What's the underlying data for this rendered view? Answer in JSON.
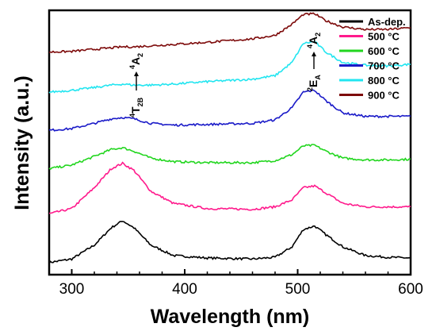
{
  "chart_data": {
    "type": "line",
    "xlabel": "Wavelength (nm)",
    "ylabel": "Intensity (a.u.)",
    "xlim": [
      280,
      600
    ],
    "xticks": [
      300,
      400,
      500,
      600
    ],
    "ylim": [
      0,
      7.6
    ],
    "yticks_labeled": false,
    "grid": false,
    "legend_position": "top-right",
    "annotations": [
      {
        "text": "4T2B → 4A2",
        "x": 352,
        "near": "left peak"
      },
      {
        "text": "2EA → 4A2",
        "x": 507,
        "near": "right peak"
      }
    ],
    "series": [
      {
        "name": "As-dep.",
        "color": "#000000",
        "x": [
          280,
          300,
          320,
          335,
          345,
          355,
          370,
          390,
          420,
          460,
          480,
          495,
          505,
          515,
          525,
          540,
          560,
          580,
          600
        ],
        "y": [
          0.35,
          0.45,
          0.85,
          1.35,
          1.55,
          1.35,
          0.85,
          0.55,
          0.48,
          0.45,
          0.5,
          0.8,
          1.3,
          1.4,
          1.15,
          0.8,
          0.55,
          0.5,
          0.48
        ]
      },
      {
        "name": "500 °C",
        "color": "#ff1a8c",
        "x": [
          280,
          300,
          320,
          335,
          345,
          355,
          370,
          390,
          420,
          460,
          480,
          495,
          505,
          515,
          525,
          540,
          560,
          580,
          600
        ],
        "y": [
          1.75,
          1.9,
          2.5,
          3.05,
          3.2,
          3.0,
          2.4,
          2.05,
          1.9,
          1.88,
          1.95,
          2.15,
          2.5,
          2.55,
          2.35,
          2.05,
          1.95,
          1.95,
          1.95
        ]
      },
      {
        "name": "600 °C",
        "color": "#22d61f",
        "x": [
          280,
          300,
          320,
          335,
          345,
          355,
          370,
          390,
          420,
          460,
          480,
          495,
          505,
          515,
          525,
          540,
          560,
          580,
          600
        ],
        "y": [
          3.05,
          3.15,
          3.4,
          3.6,
          3.65,
          3.55,
          3.35,
          3.25,
          3.22,
          3.22,
          3.28,
          3.45,
          3.7,
          3.72,
          3.55,
          3.35,
          3.3,
          3.3,
          3.32
        ]
      },
      {
        "name": "700 °C",
        "color": "#1a1ac8",
        "x": [
          280,
          300,
          320,
          335,
          345,
          355,
          370,
          390,
          420,
          460,
          480,
          495,
          505,
          515,
          525,
          540,
          560,
          580,
          600
        ],
        "y": [
          4.15,
          4.2,
          4.35,
          4.48,
          4.52,
          4.48,
          4.35,
          4.3,
          4.32,
          4.35,
          4.45,
          4.8,
          5.25,
          5.3,
          5.0,
          4.65,
          4.55,
          4.55,
          4.55
        ]
      },
      {
        "name": "800 °C",
        "color": "#22e5f0",
        "x": [
          280,
          300,
          320,
          335,
          345,
          355,
          370,
          390,
          420,
          460,
          480,
          495,
          505,
          515,
          525,
          540,
          560,
          580,
          600
        ],
        "y": [
          5.25,
          5.3,
          5.38,
          5.45,
          5.48,
          5.45,
          5.45,
          5.48,
          5.55,
          5.62,
          5.72,
          6.1,
          6.65,
          6.7,
          6.4,
          6.1,
          6.02,
          6.0,
          6.05
        ]
      },
      {
        "name": "900 °C",
        "color": "#7d0a0a",
        "x": [
          280,
          300,
          320,
          335,
          345,
          355,
          370,
          390,
          420,
          460,
          480,
          495,
          505,
          515,
          525,
          540,
          560,
          580,
          600
        ],
        "y": [
          6.4,
          6.42,
          6.48,
          6.52,
          6.55,
          6.55,
          6.58,
          6.62,
          6.68,
          6.78,
          6.88,
          7.2,
          7.48,
          7.5,
          7.3,
          7.12,
          7.05,
          7.05,
          7.1
        ]
      }
    ]
  }
}
